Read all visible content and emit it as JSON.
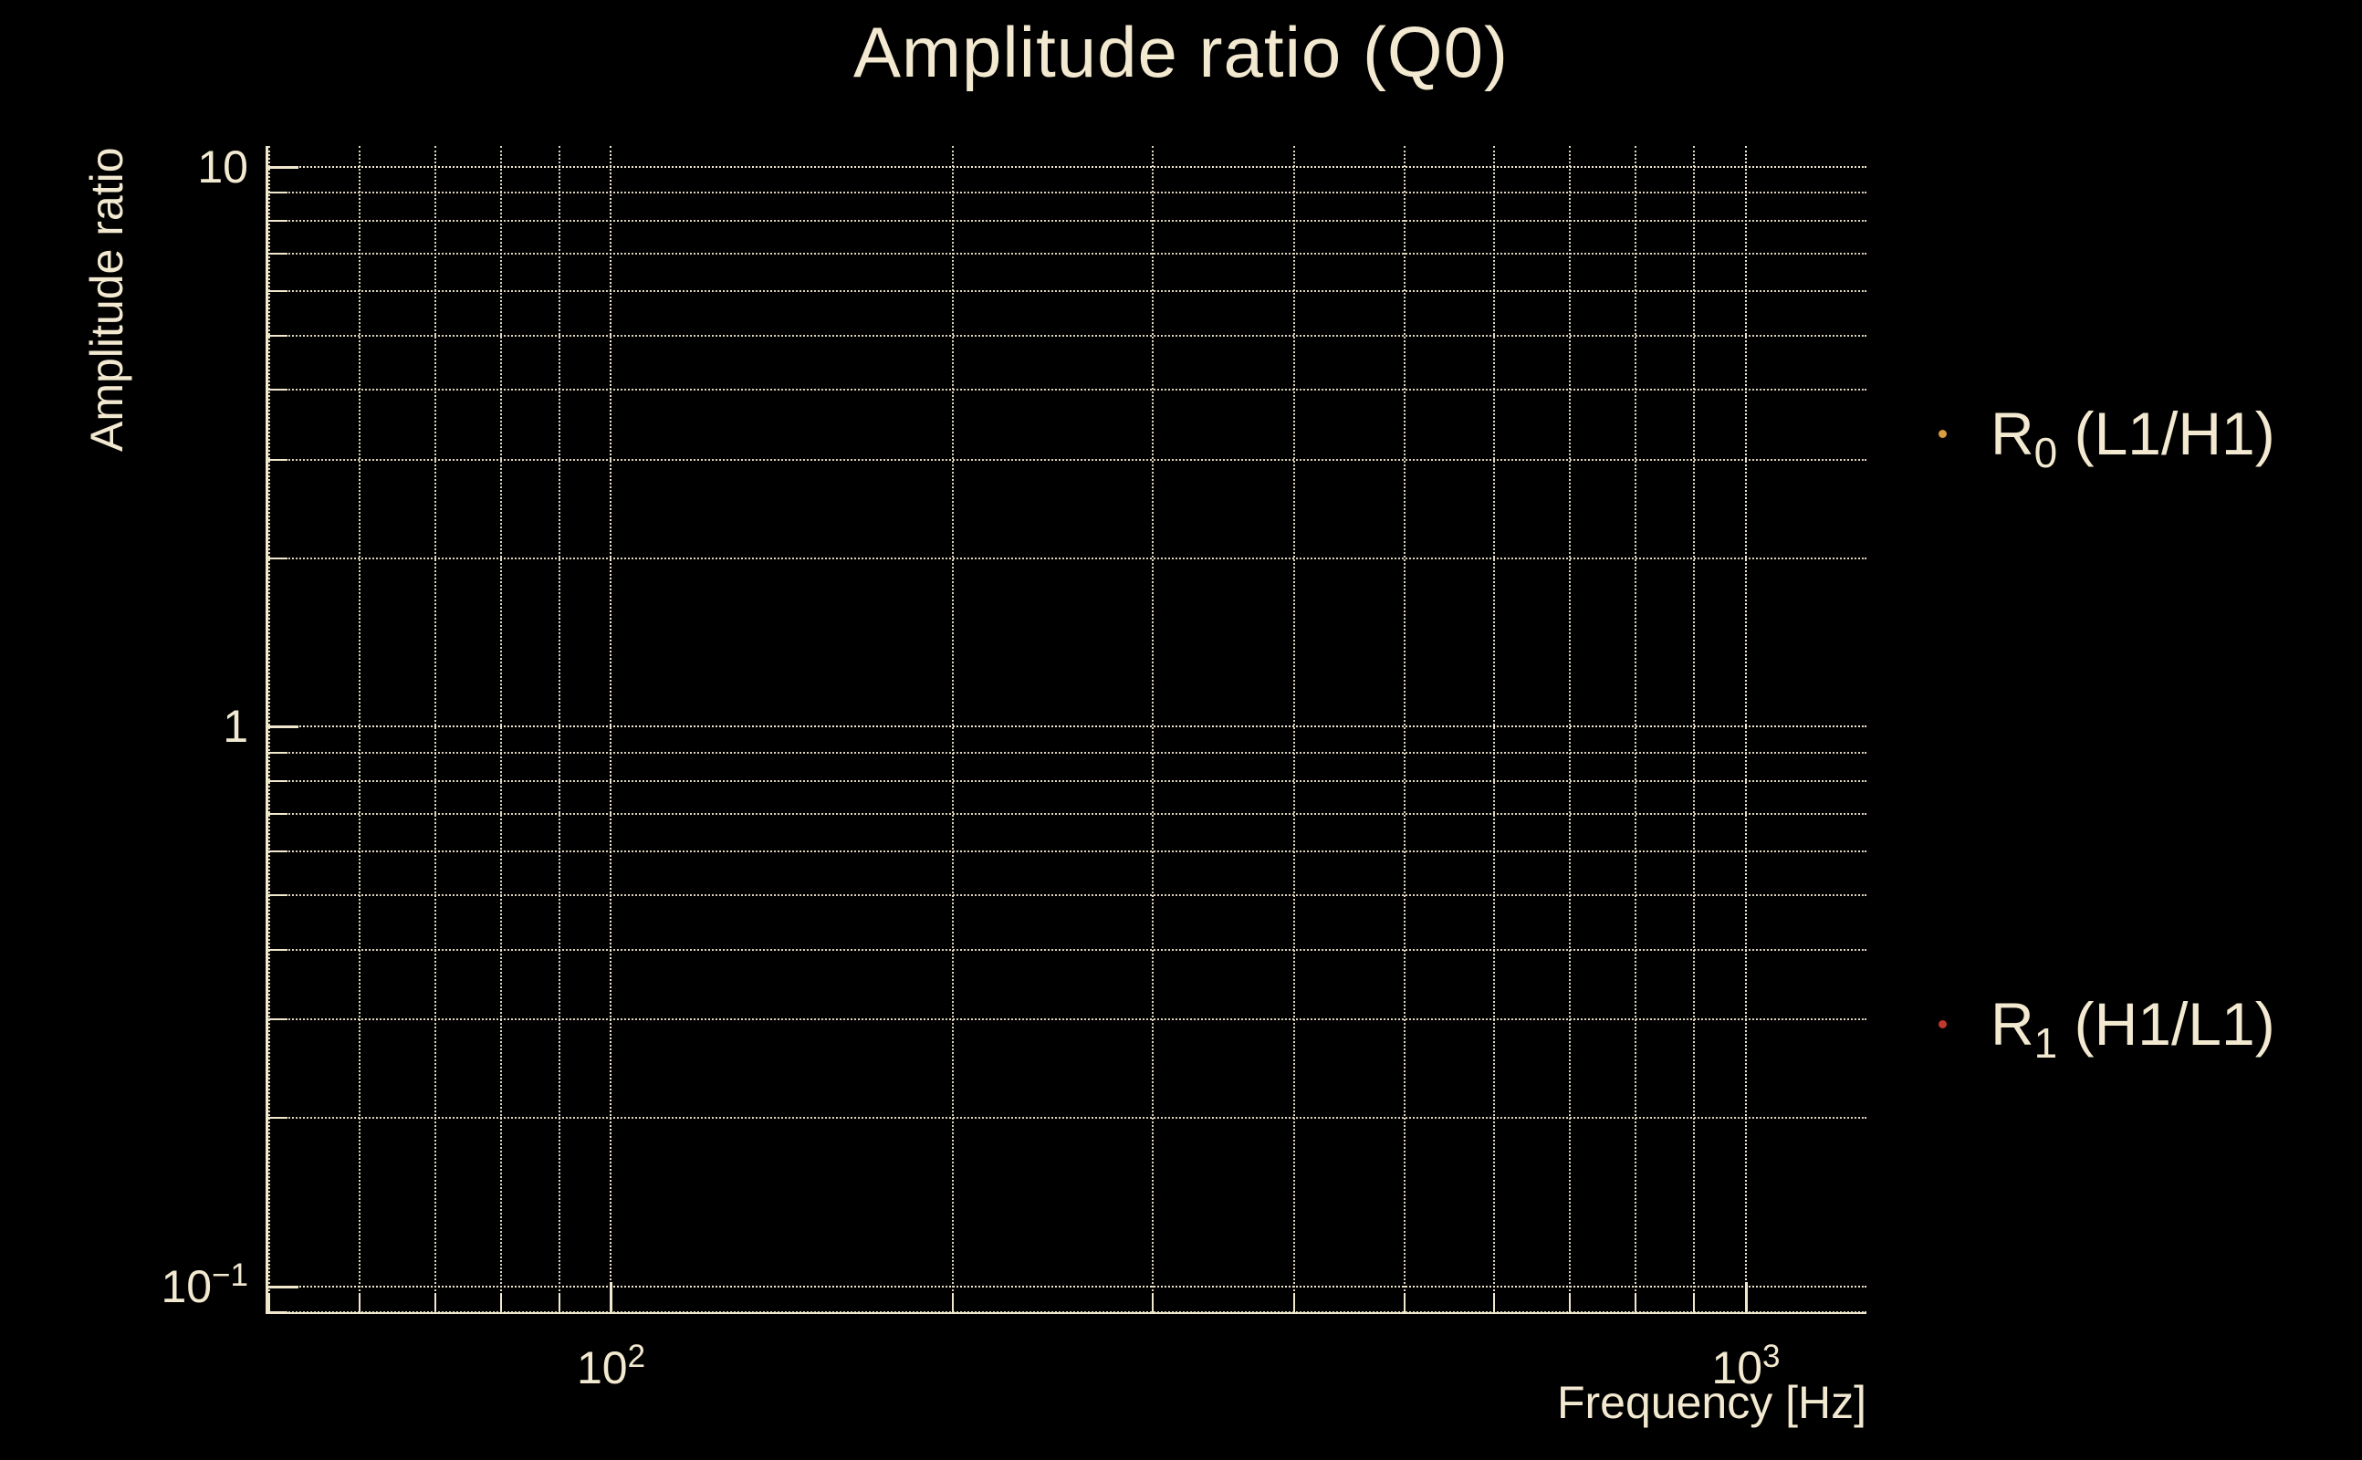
{
  "chart_data": {
    "type": "scatter",
    "title": "Amplitude ratio (Q0)",
    "xlabel": "Frequency [Hz]",
    "ylabel": "Amplitude ratio",
    "xscale": "log",
    "yscale": "log",
    "xlim": [
      49.8,
      1277
    ],
    "ylim": [
      0.0897,
      10.9
    ],
    "grid": "dotted, major and minor, both axes",
    "legend_position": "outside right",
    "x_major_gridlines": [
      100,
      1000
    ],
    "x_minor_gridlines": [
      50,
      60,
      70,
      80,
      90,
      200,
      300,
      400,
      500,
      600,
      700,
      800,
      900
    ],
    "y_major_gridlines": [
      10,
      1,
      0.1
    ],
    "y_minor_gridlines": [
      9,
      8,
      7,
      6,
      5,
      4,
      3,
      2,
      0.9,
      0.8,
      0.7,
      0.6,
      0.5,
      0.4,
      0.3,
      0.2,
      0.09
    ],
    "xticks": [
      {
        "value": 100,
        "base": "10",
        "exp": "2"
      },
      {
        "value": 1000,
        "base": "10",
        "exp": "3"
      }
    ],
    "yticks": [
      {
        "value": 10,
        "base": "10",
        "exp": ""
      },
      {
        "value": 1,
        "base": "1",
        "exp": ""
      },
      {
        "value": 0.1,
        "base": "10",
        "exp": "−1"
      }
    ],
    "series": [
      {
        "name": "R0 (L1/H1)",
        "marker": "dot",
        "marker_color": "#d99c3e",
        "points": []
      },
      {
        "name": "R1 (H1/L1)",
        "marker": "dot",
        "marker_color": "#c0392b",
        "points": []
      }
    ]
  },
  "legend": {
    "items": [
      {
        "main": "R",
        "sub": "0",
        "rest": " (L1/H1)",
        "marker_color": "#d99c3e"
      },
      {
        "main": "R",
        "sub": "1",
        "rest": " (H1/L1)",
        "marker_color": "#c0392b"
      }
    ]
  },
  "colors": {
    "background": "#000000",
    "text": "#f2e9d0",
    "grid": "#f0e7cd",
    "marker_r0": "#d99c3e",
    "marker_r1": "#c0392b"
  }
}
